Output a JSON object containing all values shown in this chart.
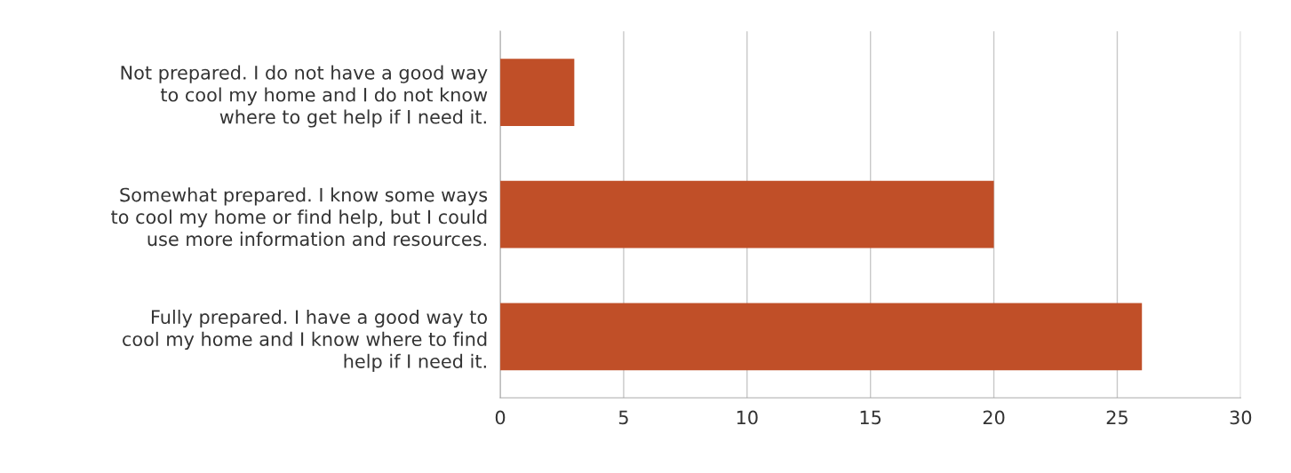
{
  "chart_data": {
    "type": "bar",
    "orientation": "horizontal",
    "categories": [
      "Not prepared. I do not have a good way\nto cool my home and I do not know\nwhere to get help if I need it.",
      "Somewhat prepared. I know some ways\nto cool my home or find help, but I could\nuse more information and resources.",
      "Fully prepared. I have a good way to\ncool my home and I know where to find\nhelp if I need it."
    ],
    "values": [
      3,
      20,
      26
    ],
    "color": "#c04f28",
    "xlim": [
      0,
      30
    ],
    "xticks": [
      0,
      5,
      10,
      15,
      20,
      25,
      30
    ],
    "grid": "x"
  }
}
